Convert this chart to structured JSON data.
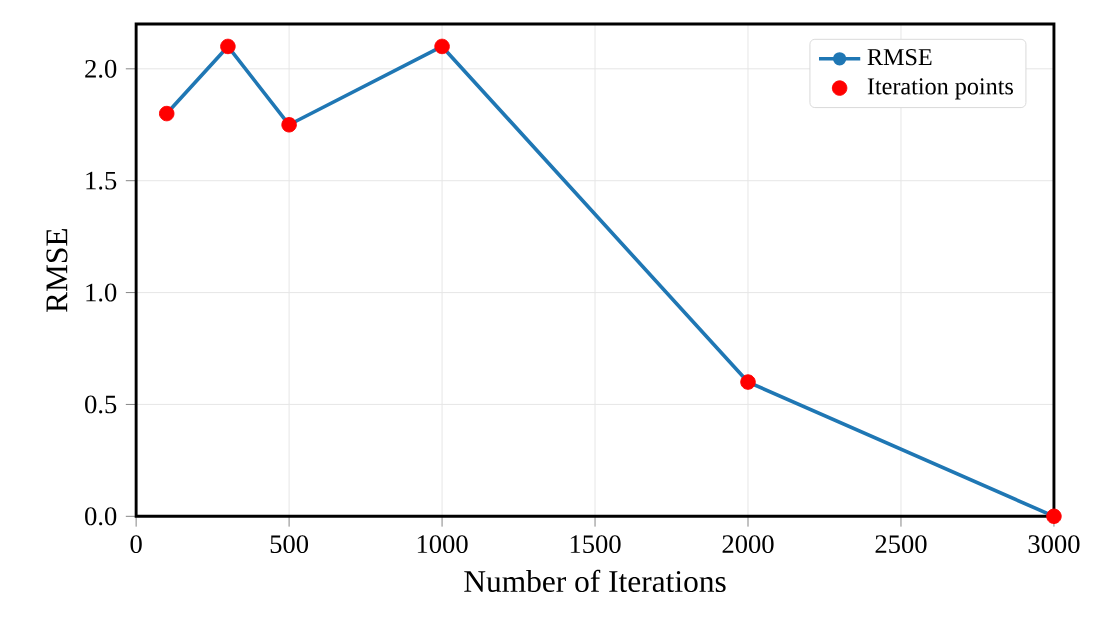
{
  "chart_data": {
    "type": "line",
    "xlabel": "Number of Iterations",
    "ylabel": "RMSE",
    "xlim": [
      0,
      3000
    ],
    "ylim": [
      0,
      2.2
    ],
    "xticks": [
      0,
      500,
      1000,
      1500,
      2000,
      2500,
      3000
    ],
    "yticks": [
      {
        "value": 0,
        "label": "0.0"
      },
      {
        "value": 0.5,
        "label": "0.5"
      },
      {
        "value": 1,
        "label": "1.0"
      },
      {
        "value": 1.5,
        "label": "1.5"
      },
      {
        "value": 2,
        "label": "2.0"
      }
    ],
    "grid": true,
    "legend": "top right",
    "series": [
      {
        "name": "RMSE",
        "type": "line",
        "color": "#1f77b4",
        "marker": "circle",
        "x": [
          100,
          300,
          500,
          1000,
          2000,
          3000
        ],
        "values": [
          1.8,
          2.1,
          1.75,
          2.1,
          0.6,
          0.0
        ]
      },
      {
        "name": "Iteration points",
        "type": "scatter",
        "color": "#ff0000",
        "marker": "circle",
        "x": [
          100,
          300,
          500,
          1000,
          2000,
          3000
        ],
        "values": [
          1.8,
          2.1,
          1.75,
          2.1,
          0.6,
          0.0
        ]
      }
    ]
  }
}
